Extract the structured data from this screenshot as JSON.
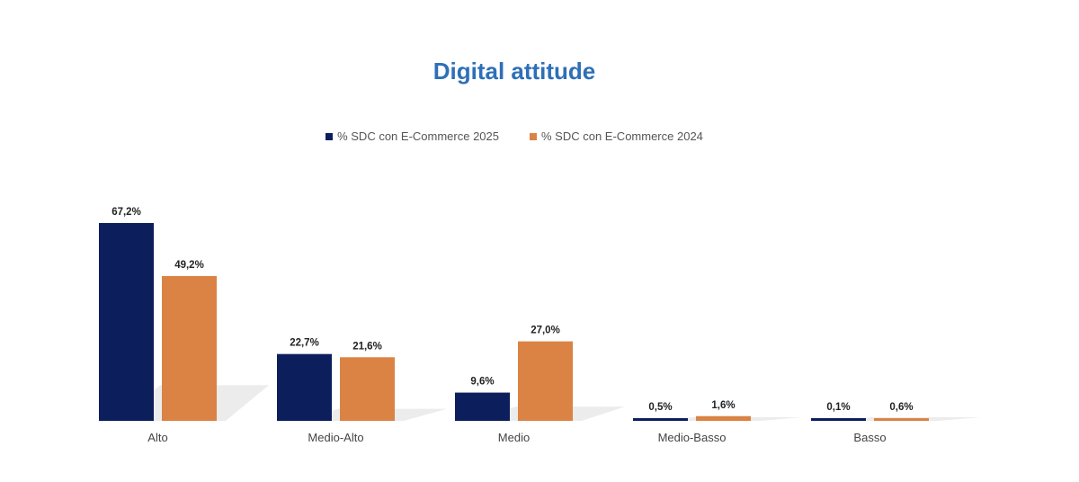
{
  "chart_data": {
    "type": "bar",
    "title": "Digital attitude",
    "categories": [
      "Alto",
      "Medio-Alto",
      "Medio",
      "Medio-Basso",
      "Basso"
    ],
    "series": [
      {
        "name": "% SDC con E-Commerce 2025",
        "values": [
          67.2,
          22.7,
          9.6,
          0.5,
          0.1
        ],
        "labels": [
          "67,2%",
          "22,7%",
          "9,6%",
          "0,5%",
          "0,1%"
        ],
        "color": "#0c1f5c"
      },
      {
        "name": "% SDC con E-Commerce 2024",
        "values": [
          49.2,
          21.6,
          27.0,
          1.6,
          0.6
        ],
        "labels": [
          "49,2%",
          "21,6%",
          "27,0%",
          "1,6%",
          "0,6%"
        ],
        "color": "#db8344"
      }
    ],
    "legend_position": "top",
    "grid": false,
    "ylim": [
      0,
      67.2
    ]
  }
}
